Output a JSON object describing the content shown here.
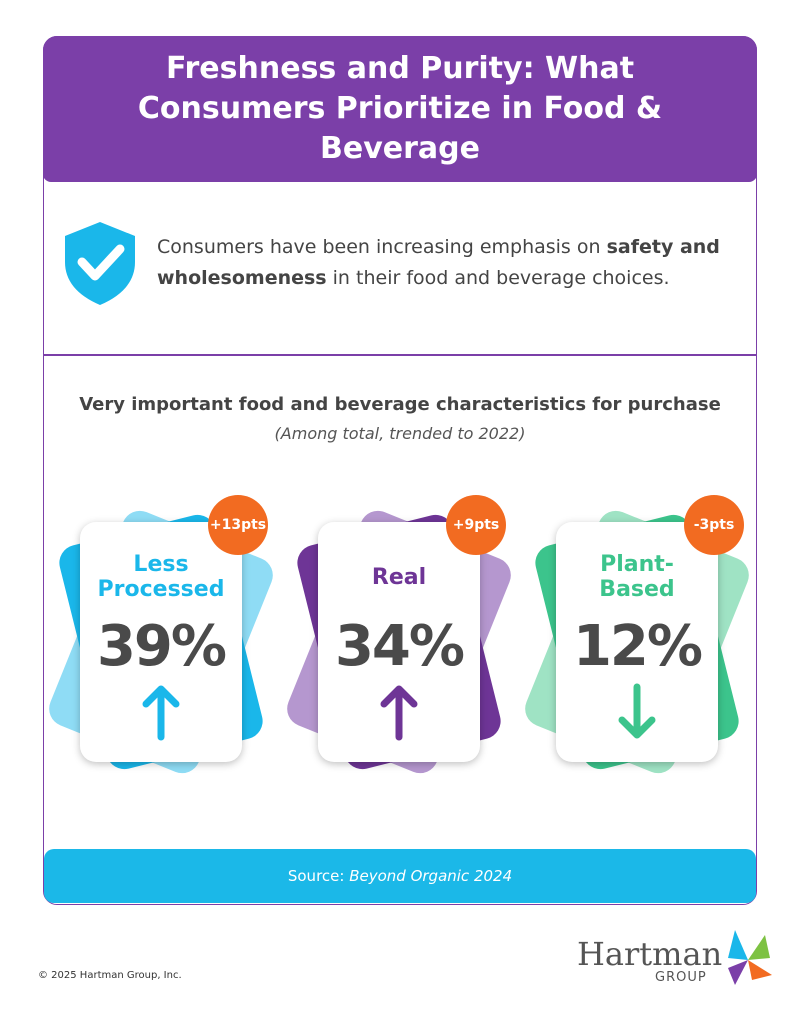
{
  "header": {
    "title": "Freshness and Purity: What Consumers Prioritize in Food & Beverage"
  },
  "intro": {
    "before": "Consumers have been increasing emphasis on ",
    "bold": "safety and wholesomeness",
    "after": " in their food and beverage choices."
  },
  "section": {
    "title": "Very important food and beverage characteristics for purchase",
    "subtitle": "(Among total, trended to 2022)"
  },
  "cards": [
    {
      "label": "Less Processed",
      "value": "39%",
      "change": "+13pts"
    },
    {
      "label": "Real",
      "value": "34%",
      "change": "+9pts"
    },
    {
      "label": "Plant-Based",
      "value": "12%",
      "change": "-3pts"
    }
  ],
  "footer": {
    "source_prefix": "Source: ",
    "source_title": "Beyond Organic 2024",
    "copyright": "© 2025 Hartman Group, Inc."
  },
  "logo": {
    "name": "Hartman",
    "sub": "GROUP"
  }
}
